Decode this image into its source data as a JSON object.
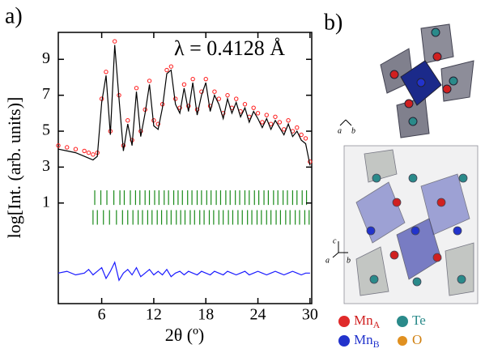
{
  "chart_data": {
    "type": "powder-diffraction",
    "panel_label": "a)",
    "annotation": "λ = 0.4128 Å",
    "ylabel": "log[Int. (arb. units)]",
    "xlabel": "2θ (º)",
    "xlim": [
      1,
      30.2
    ],
    "ylim": [
      -4.6,
      10.5
    ],
    "xticks": [
      6,
      12,
      18,
      24,
      30
    ],
    "yticks": [
      1,
      3,
      5,
      7,
      9
    ],
    "x": [
      1,
      2,
      3,
      4,
      4.5,
      5,
      5.5,
      6,
      6.5,
      7,
      7.5,
      8,
      8.5,
      9,
      9.5,
      10,
      10.5,
      11,
      11.5,
      12,
      12.5,
      13,
      13.5,
      14,
      14.5,
      15,
      15.5,
      16,
      16.5,
      17,
      17.5,
      18,
      18.5,
      19,
      19.5,
      20,
      20.5,
      21,
      21.5,
      22,
      22.5,
      23,
      23.5,
      24,
      24.5,
      25,
      25.5,
      26,
      26.5,
      27,
      27.5,
      28,
      28.5,
      29,
      29.5,
      30
    ],
    "series": [
      {
        "color": "#ff1a1a",
        "style": "points",
        "values": [
          4.2,
          4.1,
          4.0,
          3.9,
          3.8,
          3.7,
          3.8,
          6.8,
          8.3,
          5.0,
          10.0,
          7.0,
          4.2,
          5.6,
          4.5,
          7.4,
          5.0,
          6.2,
          7.8,
          5.6,
          5.4,
          6.5,
          8.4,
          8.6,
          6.8,
          6.3,
          7.6,
          6.4,
          7.9,
          6.2,
          7.2,
          7.9,
          6.4,
          7.2,
          6.8,
          6.0,
          7.0,
          6.3,
          6.8,
          6.1,
          6.5,
          5.8,
          6.3,
          6.0,
          5.5,
          5.9,
          5.4,
          5.8,
          5.5,
          5.1,
          5.6,
          5.0,
          5.2,
          4.8,
          4.6,
          3.3
        ]
      },
      {
        "color": "#000000",
        "style": "line",
        "values": [
          4.0,
          3.9,
          3.8,
          3.6,
          3.5,
          3.4,
          3.6,
          6.6,
          8.1,
          4.8,
          9.8,
          6.8,
          3.9,
          5.4,
          4.2,
          7.2,
          4.7,
          6.0,
          7.6,
          5.3,
          5.1,
          6.3,
          8.2,
          8.4,
          6.5,
          6.0,
          7.4,
          6.1,
          7.7,
          5.9,
          7.0,
          7.7,
          6.1,
          7.0,
          6.5,
          5.7,
          6.8,
          6.0,
          6.6,
          5.8,
          6.3,
          5.5,
          6.1,
          5.7,
          5.2,
          5.7,
          5.1,
          5.6,
          5.2,
          4.8,
          5.4,
          4.7,
          5.0,
          4.5,
          4.3,
          3.1
        ]
      },
      {
        "color": "#1a1aff",
        "style": "line",
        "values": [
          -2.9,
          -2.8,
          -3.0,
          -2.9,
          -2.7,
          -3.0,
          -2.8,
          -2.6,
          -3.2,
          -2.8,
          -2.3,
          -3.3,
          -2.9,
          -2.7,
          -3.0,
          -2.6,
          -3.1,
          -2.9,
          -2.7,
          -3.0,
          -2.8,
          -3.0,
          -2.7,
          -3.1,
          -2.9,
          -2.8,
          -3.0,
          -2.8,
          -2.9,
          -3.0,
          -2.8,
          -2.9,
          -3.0,
          -2.8,
          -2.9,
          -3.0,
          -2.8,
          -2.9,
          -3.0,
          -2.9,
          -2.8,
          -3.0,
          -2.9,
          -2.8,
          -2.9,
          -3.0,
          -2.9,
          -2.8,
          -2.9,
          -3.0,
          -2.9,
          -2.8,
          -2.9,
          -3.0,
          -2.9,
          -2.9
        ]
      }
    ],
    "reflections": [
      {
        "color": "#1a8a1a",
        "y": 1.3,
        "x": [
          5.2,
          5.9,
          6.6,
          7.4,
          8.1,
          8.6,
          9.3,
          9.9,
          10.4,
          11.0,
          11.5,
          12.1,
          12.6,
          13.2,
          13.7,
          14.3,
          14.8,
          15.3,
          15.9,
          16.4,
          17.0,
          17.5,
          18.1,
          18.6,
          19.2,
          19.7,
          20.3,
          20.8,
          21.4,
          21.9,
          22.5,
          23.0,
          23.6,
          24.1,
          24.7,
          25.2,
          25.8,
          26.3,
          26.9,
          27.4,
          28.0,
          28.5,
          29.1,
          29.6
        ]
      },
      {
        "color": "#1a8a1a",
        "y": 0.2,
        "x": [
          5.0,
          5.5,
          6.2,
          6.9,
          7.7,
          8.4,
          9.0,
          9.6,
          10.2,
          10.7,
          11.3,
          11.8,
          12.4,
          12.9,
          13.5,
          14.0,
          14.6,
          15.1,
          15.6,
          16.2,
          16.7,
          17.3,
          17.8,
          18.4,
          18.9,
          19.5,
          20.0,
          20.6,
          21.1,
          21.7,
          22.2,
          22.8,
          23.3,
          23.9,
          24.4,
          25.0,
          25.5,
          26.1,
          26.6,
          27.2,
          27.7,
          28.3,
          28.8,
          29.4,
          29.9
        ]
      }
    ]
  },
  "panel_b": {
    "label": "b)",
    "top_axes": [
      "a",
      "b"
    ],
    "side_axes": [
      "c",
      "a",
      "b"
    ],
    "legend": [
      {
        "label": "Mn",
        "sub": "A"
      },
      {
        "label": "Te"
      },
      {
        "label": "Mn",
        "sub": "B"
      },
      {
        "label": "O"
      }
    ]
  }
}
